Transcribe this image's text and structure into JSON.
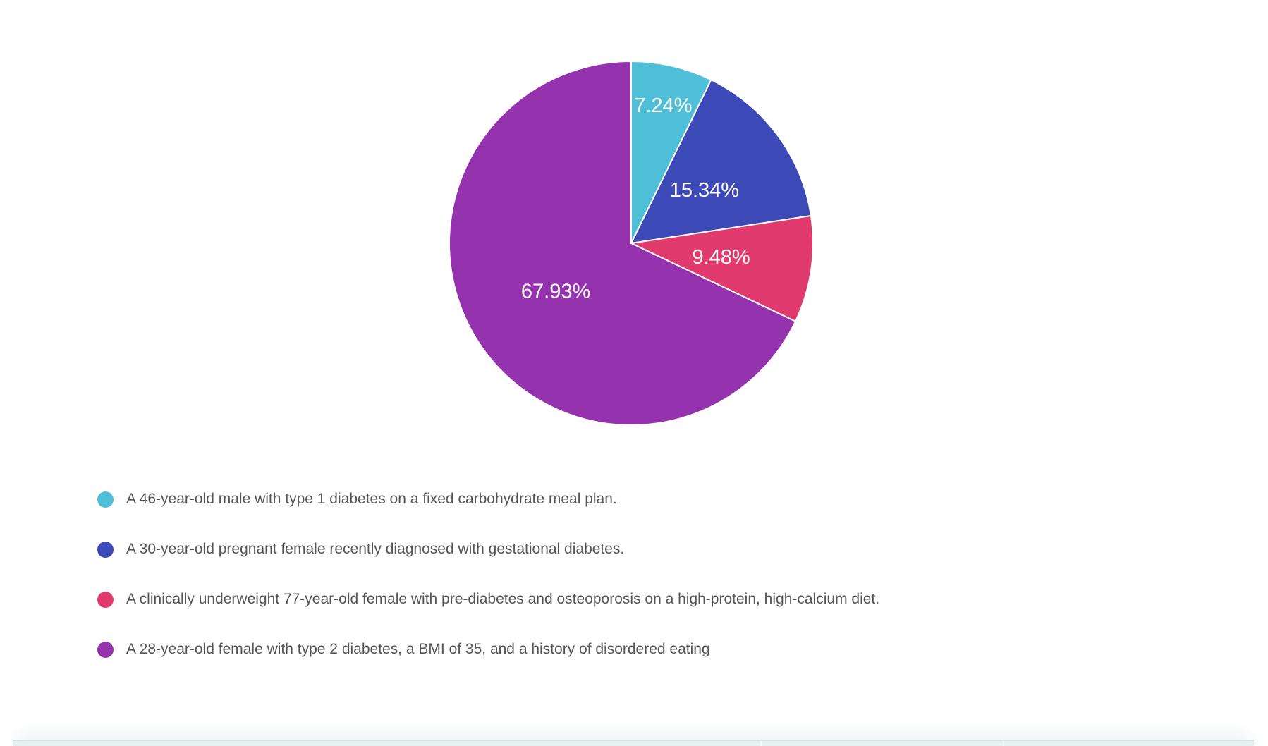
{
  "page": {
    "background": "#ffffff"
  },
  "chart_data": {
    "type": "pie",
    "title": "",
    "labels": [
      "A 46-year-old male with type 1 diabetes on a fixed carbohydrate meal plan.",
      "A 30-year-old pregnant female recently diagnosed with gestational diabetes.",
      "A clinically underweight 77-year-old female with pre-diabetes and osteoporosis on a high-protein, high-calcium diet.",
      "A 28-year-old female with type 2 diabetes, a BMI of 35, and a history of disordered eating"
    ],
    "values": [
      7.24,
      15.34,
      9.48,
      67.93
    ],
    "unit": "%",
    "percent_labels": [
      "7.24%",
      "15.34%",
      "9.48%",
      "67.93%"
    ],
    "colors": [
      "#4FBFD8",
      "#3D49B6",
      "#E13A6E",
      "#9532AE"
    ],
    "slice_label_color": "#ffffff",
    "slice_border_color": "#ffffff",
    "start_angle": "12-oclock-clockwise",
    "label_radius_frac": [
      0.78,
      0.5,
      0.5,
      0.49
    ],
    "legend_position": "bottom-left",
    "legend_text_color": "#555555"
  },
  "bottom_table": {
    "visible_part": "header-top-edge-only",
    "header_fill": "#E7F0F1",
    "border_color": "#D3E2E5",
    "divider_color": "#F6FBFB",
    "column_count": 3
  }
}
